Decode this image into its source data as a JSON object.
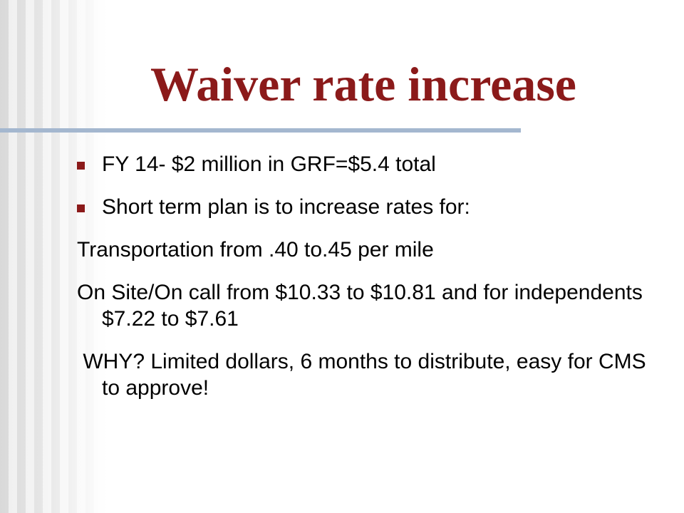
{
  "title": "Waiver rate increase",
  "items": [
    {
      "text": "FY 14- $2 million in GRF=$5.4 total",
      "bullet": true
    },
    {
      "text": "Short term plan is to increase rates for:",
      "bullet": true
    },
    {
      "text": "Transportation from .40 to.45 per mile",
      "bullet": false
    },
    {
      "text": "On Site/On call from $10.33 to $10.81 and for independents $7.22 to $7.61",
      "bullet": false
    },
    {
      "text": " WHY? Limited dollars, 6 months to distribute, easy for CMS to approve!",
      "bullet": false
    }
  ]
}
